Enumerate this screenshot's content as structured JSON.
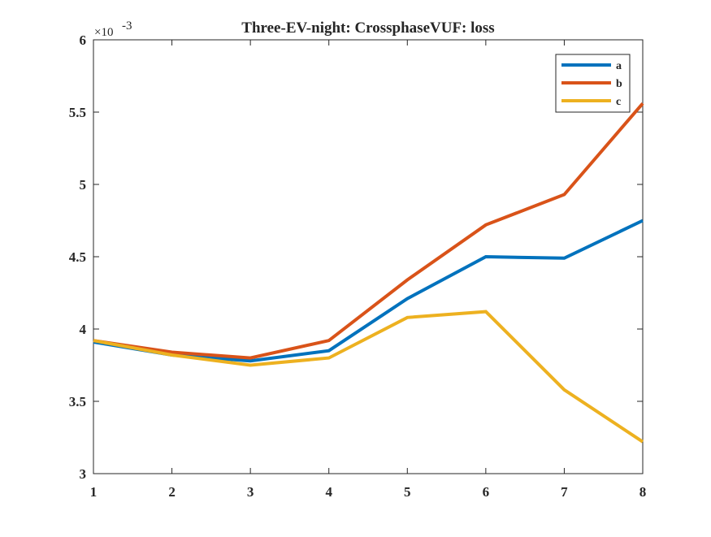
{
  "chart_data": {
    "type": "line",
    "title": "Three-EV-night: CrossphaseVUF: loss",
    "xlabel": "",
    "ylabel": "",
    "x": [
      1,
      2,
      3,
      4,
      5,
      6,
      7,
      8
    ],
    "xlim": [
      1,
      8
    ],
    "ylim": [
      0.003,
      0.006
    ],
    "y_exponent_label": "×10",
    "y_exponent_power": "-3",
    "xticks": [
      "1",
      "2",
      "3",
      "4",
      "5",
      "6",
      "7",
      "8"
    ],
    "yticks": [
      {
        "value": 0.003,
        "label": "3"
      },
      {
        "value": 0.0035,
        "label": "3.5"
      },
      {
        "value": 0.004,
        "label": "4"
      },
      {
        "value": 0.0045,
        "label": "4.5"
      },
      {
        "value": 0.005,
        "label": "5"
      },
      {
        "value": 0.0055,
        "label": "5.5"
      },
      {
        "value": 0.006,
        "label": "6"
      }
    ],
    "grid": false,
    "legend_position": "top-right",
    "series": [
      {
        "name": "a",
        "color": "#0072BD",
        "values": [
          0.00391,
          0.00382,
          0.00378,
          0.00385,
          0.00421,
          0.0045,
          0.00449,
          0.00475
        ]
      },
      {
        "name": "b",
        "color": "#D95319",
        "values": [
          0.00392,
          0.00384,
          0.0038,
          0.00392,
          0.00434,
          0.00472,
          0.00493,
          0.00556
        ]
      },
      {
        "name": "c",
        "color": "#EDB120",
        "values": [
          0.00392,
          0.00382,
          0.00375,
          0.0038,
          0.00408,
          0.00412,
          0.00358,
          0.00322
        ]
      }
    ]
  }
}
